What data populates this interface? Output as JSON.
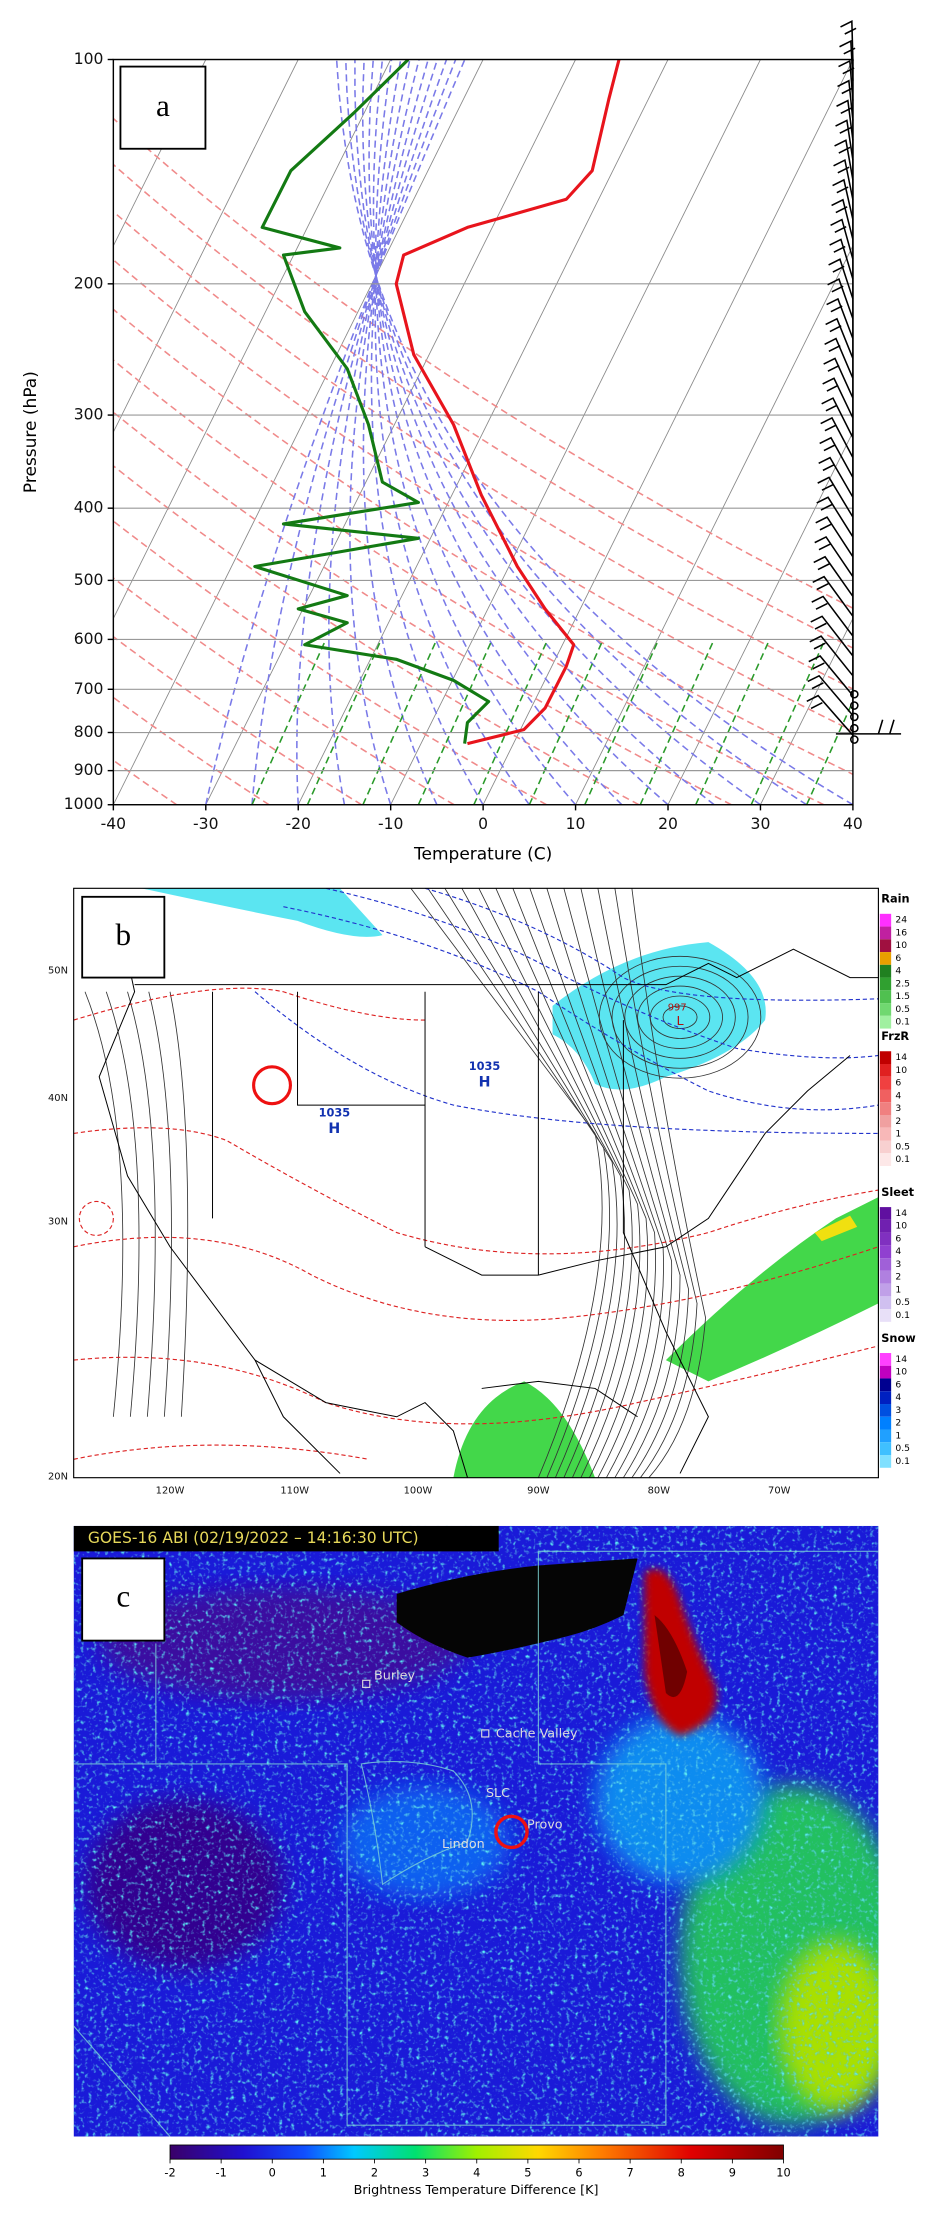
{
  "panel_labels": [
    "a",
    "b",
    "c"
  ],
  "chart_data": {
    "type": "line",
    "xlabel": "Temperature (C)",
    "ylabel": "Pressure (hPa)",
    "xlim": [
      -40,
      40
    ],
    "ylim": [
      1000,
      100
    ],
    "yscale": "log",
    "grid": true,
    "xticks": [
      -40,
      -30,
      -20,
      -10,
      0,
      10,
      20,
      30,
      40
    ],
    "yticks": [
      100,
      200,
      300,
      400,
      500,
      600,
      700,
      800,
      900,
      1000
    ],
    "series": [
      {
        "color": "#e8141c",
        "x": [
          14.7,
          13.6,
          11.8,
          9,
          -1.7,
          -8.6,
          -9.4,
          -7.5,
          -3.2,
          -0.2,
          3.7,
          6.7,
          9.8,
          9,
          6.7,
          4.4,
          -1.7
        ],
        "y": [
          100,
          113,
          141,
          154,
          168,
          183,
          200,
          249,
          309,
          384,
          479,
          546,
          610,
          652,
          742,
          793,
          828
        ]
      },
      {
        "color": "#137a13",
        "x": [
          -8.1,
          -14,
          -20.8,
          -23.9,
          -15.5,
          -21.6,
          -19.3,
          -14.7,
          -12.4,
          -10.9,
          -7,
          -21.6,
          -7,
          -24.7,
          -14.7,
          -20,
          -14.7,
          -19.3,
          -9.4,
          -3.2,
          0.6,
          -1.7,
          -2
        ],
        "y": [
          100,
          118,
          141,
          168,
          179,
          183,
          218,
          260,
          309,
          369,
          393,
          420,
          439,
          479,
          524,
          546,
          570,
          610,
          638,
          681,
          727,
          776,
          828
        ]
      }
    ]
  },
  "map": {
    "lat_labels": [
      "50N",
      "40N",
      "30N",
      "20N"
    ],
    "lon_labels": [
      "120W",
      "110W",
      "100W",
      "90W",
      "80W",
      "70W"
    ],
    "highs": [
      {
        "value": "1035",
        "symbol": "H"
      },
      {
        "value": "1035",
        "symbol": "H"
      }
    ],
    "low": {
      "value": "997",
      "symbol": "L"
    },
    "legends": [
      {
        "title": "Rain",
        "ticks": [
          24,
          16,
          10,
          6,
          4,
          2.5,
          1.5,
          0.5,
          0.1
        ]
      },
      {
        "title": "FrzR",
        "ticks": [
          14,
          10,
          6,
          4,
          3,
          2,
          1,
          0.5,
          0.1
        ]
      },
      {
        "title": "Sleet",
        "ticks": [
          14,
          10,
          6,
          4,
          3,
          2,
          1,
          0.5,
          0.1
        ]
      },
      {
        "title": "Snow",
        "ticks": [
          14,
          10,
          6,
          4,
          3,
          2,
          1,
          0.5,
          0.1
        ]
      }
    ]
  },
  "satellite": {
    "title": "GOES-16 ABI (02/19/2022 – 14:16:30 UTC)",
    "places": [
      "Burley",
      "Cache Valley",
      "SLC",
      "Lindon",
      "Provo"
    ],
    "colorbar": {
      "ticks": [
        -2,
        -1,
        0,
        1,
        2,
        3,
        4,
        5,
        6,
        7,
        8,
        9,
        10
      ],
      "label": "Brightness Temperature Difference [K]"
    }
  }
}
